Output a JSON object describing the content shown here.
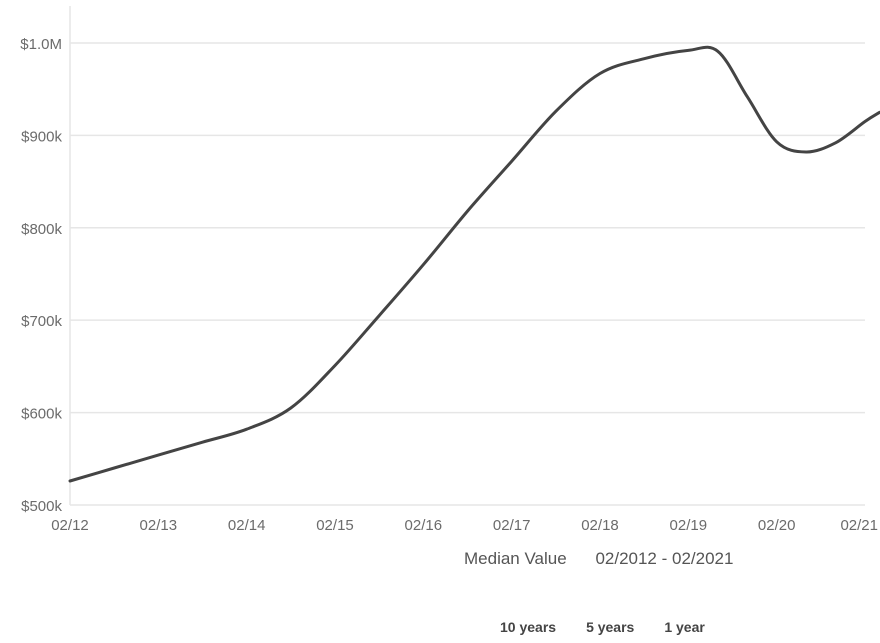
{
  "chart_data": {
    "type": "line",
    "y_tick_labels": [
      "$500k",
      "$600k",
      "$700k",
      "$800k",
      "$900k",
      "$1.0M"
    ],
    "y_tick_values": [
      500000,
      600000,
      700000,
      800000,
      900000,
      1000000
    ],
    "x_tick_labels": [
      "02/12",
      "02/13",
      "02/14",
      "02/15",
      "02/16",
      "02/17",
      "02/18",
      "02/19",
      "02/20",
      "02/21"
    ],
    "ylim": [
      500000,
      1040000
    ],
    "xlim": [
      "2012-02",
      "2021-02"
    ],
    "grid": true,
    "line_color": "#444444",
    "grid_color": "#e6e6e6",
    "series": [
      {
        "x": [
          "2012-02",
          "2012-08",
          "2013-02",
          "2013-08",
          "2014-02",
          "2014-08",
          "2015-02",
          "2015-08",
          "2016-02",
          "2016-08",
          "2017-02",
          "2017-08",
          "2018-02",
          "2018-08",
          "2019-02",
          "2019-06",
          "2019-10",
          "2020-02",
          "2020-06",
          "2020-10",
          "2021-02",
          "2021-04"
        ],
        "values": [
          526000,
          540000,
          554000,
          568000,
          582000,
          605000,
          651000,
          705000,
          760000,
          818000,
          872000,
          926000,
          967000,
          983000,
          992000,
          991000,
          942000,
          893000,
          882000,
          892000,
          915000,
          925000
        ]
      }
    ]
  },
  "caption": {
    "label": "Median Value",
    "range": "02/2012 - 02/2021"
  },
  "range_buttons": [
    "10 years",
    "5 years",
    "1 year"
  ]
}
